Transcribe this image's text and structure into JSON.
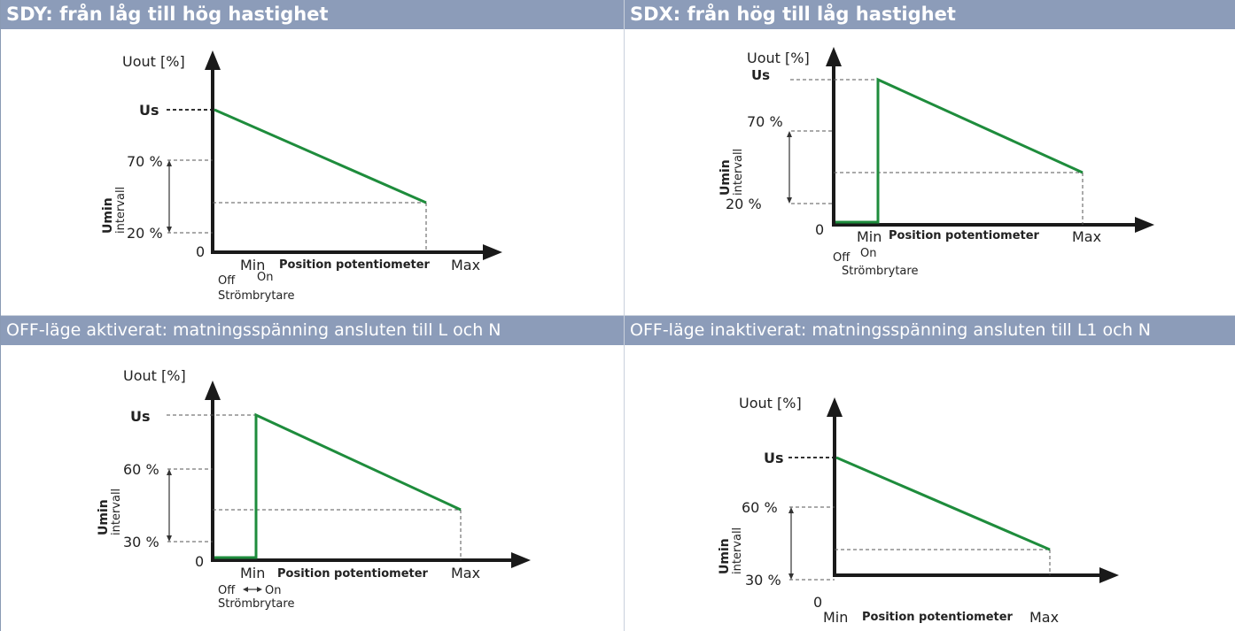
{
  "panels": [
    {
      "title": "SDY: från låg till hög hastighet",
      "y_axis_label": "Uout [%]",
      "us_label": "Us",
      "upper_label": "70 %",
      "lower_label": "20 %",
      "zero_label": "0",
      "umin_label": "Umin",
      "interval_label": "intervall",
      "x_min_label": "Min",
      "x_axis_label": "Position potentiometer",
      "x_max_label": "Max",
      "off_label": "Off",
      "on_label": "On",
      "switch_label": "Strömbrytare"
    },
    {
      "title": "SDX: från hög till låg hastighet",
      "y_axis_label": "Uout [%]",
      "us_label": "Us",
      "upper_label": "70 %",
      "lower_label": "20 %",
      "zero_label": "0",
      "umin_label": "Umin",
      "interval_label": "intervall",
      "x_min_label": "Min",
      "x_axis_label": "Position potentiometer",
      "x_max_label": "Max",
      "off_label": "Off",
      "on_label": "On",
      "switch_label": "Strömbrytare"
    },
    {
      "title": "OFF-läge aktiverat: matningsspänning ansluten till L och N",
      "y_axis_label": "Uout [%]",
      "us_label": "Us",
      "upper_label": "60 %",
      "lower_label": "30 %",
      "zero_label": "0",
      "umin_label": "Umin",
      "interval_label": "intervall",
      "x_min_label": "Min",
      "x_axis_label": "Position potentiometer",
      "x_max_label": "Max",
      "off_label": "Off",
      "on_label": "On",
      "switch_label": "Strömbrytare"
    },
    {
      "title": "OFF-läge inaktiverat: matningsspänning ansluten till L1 och N",
      "y_axis_label": "Uout [%]",
      "us_label": "Us",
      "upper_label": "60 %",
      "lower_label": "30 %",
      "zero_label": "0",
      "umin_label": "Umin",
      "interval_label": "intervall",
      "x_min_label": "Min",
      "x_axis_label": "Position potentiometer",
      "x_max_label": "Max"
    }
  ],
  "colors": {
    "header_bg": "#8c9cb9",
    "curve": "#1e8c3c",
    "axis": "#1a1a1a"
  },
  "icons": {
    "axis_arrow": "arrowhead-icon",
    "double_arrow": "double-arrow-icon"
  }
}
